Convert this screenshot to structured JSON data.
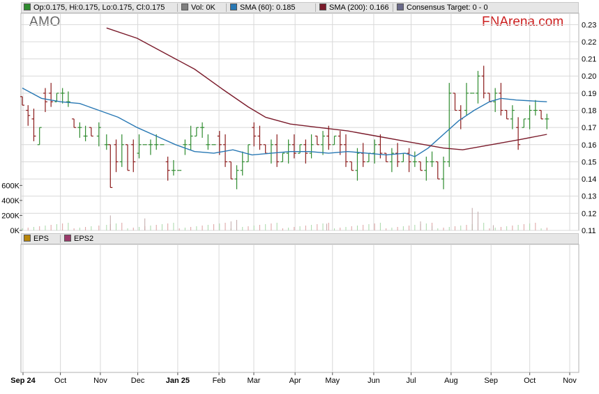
{
  "ticker": "AMO",
  "brand": "FNArena.com",
  "legend_top": [
    {
      "label": "Op:0.175, Hi:0.175, Lo:0.175, Cl:0.175",
      "color": "#2e8b2e"
    },
    {
      "label": "Vol: 0K",
      "color": "#808080"
    },
    {
      "label": "SMA (60): 0.185",
      "color": "#2878b4"
    },
    {
      "label": "SMA (200): 0.166",
      "color": "#7a1a2a"
    },
    {
      "label": "Consensus Target: 0 - 0",
      "color": "#6a6a8a"
    }
  ],
  "legend_bottom": [
    {
      "label": "EPS",
      "color": "#b8860b"
    },
    {
      "label": "EPS2",
      "color": "#9a3a6a"
    }
  ],
  "colors": {
    "up": "#2e8b2e",
    "down": "#8b1a1a",
    "sma60": "#2878b4",
    "sma200": "#7a1a2a",
    "grid": "#d8d8d8"
  },
  "chart_data": {
    "type": "ohlc",
    "price_ylim": [
      0.11,
      0.235
    ],
    "price_ticks": [
      "0.23",
      "0.22",
      "0.21",
      "0.20",
      "0.19",
      "0.18",
      "0.17",
      "0.16",
      "0.15",
      "0.14",
      "0.13",
      "0.12",
      "0.11"
    ],
    "volume_ticks": [
      "600K",
      "400K",
      "200K",
      "0K"
    ],
    "volume_ylim": [
      0,
      650000
    ],
    "x_labels": [
      "Sep 24",
      "Oct",
      "Nov",
      "Dec",
      "Jan 25",
      "Feb",
      "Mar",
      "Apr",
      "May",
      "Jun",
      "Jul",
      "Aug",
      "Sep",
      "Oct",
      "Nov"
    ],
    "x_bold": [
      "Sep 24",
      "Jan 25"
    ],
    "x_range": [
      0,
      287
    ],
    "x_label_days": [
      0,
      29,
      60,
      89,
      120,
      152,
      179,
      211,
      240,
      272,
      301,
      332,
      363,
      393,
      424
    ],
    "x_label_scale_days": 424,
    "ohlc_points": [
      [
        0,
        0.188,
        0.183
      ],
      [
        3,
        0.18,
        0.177
      ],
      [
        6,
        0.175,
        0.165
      ],
      [
        9,
        0.16,
        0.17
      ],
      [
        12,
        0.19,
        0.185
      ],
      [
        15,
        0.19,
        0.185
      ],
      [
        18,
        0.185,
        0.19
      ],
      [
        21,
        0.19,
        0.19
      ],
      [
        24,
        0.185,
        0.185
      ],
      [
        27,
        0.175,
        0.17
      ],
      [
        30,
        0.17,
        0.17
      ],
      [
        33,
        0.165,
        0.165
      ],
      [
        36,
        0.17,
        0.165
      ],
      [
        40,
        0.165,
        0.17
      ],
      [
        44,
        0.16,
        0.16
      ],
      [
        46,
        0.16,
        0.135
      ],
      [
        49,
        0.16,
        0.15
      ],
      [
        52,
        0.15,
        0.16
      ],
      [
        55,
        0.16,
        0.145
      ],
      [
        58,
        0.16,
        0.15
      ],
      [
        61,
        0.155,
        0.16
      ],
      [
        64,
        0.16,
        0.16
      ],
      [
        67,
        0.16,
        0.16
      ],
      [
        70,
        0.16,
        0.16
      ],
      [
        73,
        0.16,
        0.16
      ],
      [
        76,
        0.15,
        0.145
      ],
      [
        79,
        0.145,
        0.145
      ],
      [
        82,
        0.145,
        0.145
      ],
      [
        85,
        0.16,
        0.16
      ],
      [
        88,
        0.16,
        0.165
      ],
      [
        91,
        0.165,
        0.17
      ],
      [
        94,
        0.17,
        0.17
      ],
      [
        97,
        0.16,
        0.16
      ],
      [
        100,
        0.16,
        0.16
      ],
      [
        103,
        0.165,
        0.16
      ],
      [
        106,
        0.16,
        0.15
      ],
      [
        109,
        0.15,
        0.14
      ],
      [
        112,
        0.14,
        0.145
      ],
      [
        115,
        0.145,
        0.15
      ],
      [
        118,
        0.15,
        0.16
      ],
      [
        121,
        0.17,
        0.165
      ],
      [
        124,
        0.165,
        0.16
      ],
      [
        127,
        0.16,
        0.155
      ],
      [
        130,
        0.155,
        0.16
      ],
      [
        133,
        0.16,
        0.15
      ],
      [
        136,
        0.15,
        0.155
      ],
      [
        139,
        0.155,
        0.16
      ],
      [
        142,
        0.16,
        0.155
      ],
      [
        145,
        0.155,
        0.16
      ],
      [
        148,
        0.16,
        0.155
      ],
      [
        151,
        0.155,
        0.16
      ],
      [
        154,
        0.165,
        0.16
      ],
      [
        157,
        0.16,
        0.165
      ],
      [
        160,
        0.165,
        0.16
      ],
      [
        163,
        0.16,
        0.165
      ],
      [
        166,
        0.165,
        0.16
      ],
      [
        169,
        0.16,
        0.15
      ],
      [
        172,
        0.15,
        0.145
      ],
      [
        175,
        0.145,
        0.155
      ],
      [
        178,
        0.155,
        0.15
      ],
      [
        181,
        0.15,
        0.155
      ],
      [
        184,
        0.155,
        0.16
      ],
      [
        187,
        0.16,
        0.155
      ],
      [
        190,
        0.155,
        0.15
      ],
      [
        193,
        0.15,
        0.155
      ],
      [
        196,
        0.155,
        0.15
      ],
      [
        199,
        0.15,
        0.155
      ],
      [
        202,
        0.155,
        0.15
      ],
      [
        205,
        0.15,
        0.15
      ],
      [
        208,
        0.15,
        0.145
      ],
      [
        211,
        0.145,
        0.15
      ],
      [
        214,
        0.15,
        0.15
      ],
      [
        217,
        0.15,
        0.14
      ],
      [
        220,
        0.14,
        0.15
      ],
      [
        223,
        0.15,
        0.19
      ],
      [
        226,
        0.19,
        0.18
      ],
      [
        229,
        0.18,
        0.175
      ],
      [
        232,
        0.18,
        0.19
      ],
      [
        235,
        0.19,
        0.19
      ],
      [
        238,
        0.19,
        0.2
      ],
      [
        241,
        0.2,
        0.19
      ],
      [
        244,
        0.19,
        0.185
      ],
      [
        247,
        0.185,
        0.19
      ],
      [
        250,
        0.19,
        0.18
      ],
      [
        253,
        0.18,
        0.175
      ],
      [
        256,
        0.175,
        0.18
      ],
      [
        259,
        0.17,
        0.16
      ],
      [
        262,
        0.17,
        0.175
      ],
      [
        265,
        0.175,
        0.18
      ],
      [
        268,
        0.18,
        0.18
      ],
      [
        271,
        0.18,
        0.175
      ],
      [
        274,
        0.175,
        0.175
      ]
    ],
    "sma60": [
      [
        0,
        0.193
      ],
      [
        10,
        0.187
      ],
      [
        20,
        0.185
      ],
      [
        30,
        0.184
      ],
      [
        40,
        0.18
      ],
      [
        50,
        0.176
      ],
      [
        60,
        0.17
      ],
      [
        70,
        0.165
      ],
      [
        80,
        0.16
      ],
      [
        90,
        0.156
      ],
      [
        100,
        0.155
      ],
      [
        110,
        0.157
      ],
      [
        120,
        0.154
      ],
      [
        130,
        0.155
      ],
      [
        140,
        0.156
      ],
      [
        150,
        0.156
      ],
      [
        160,
        0.155
      ],
      [
        170,
        0.156
      ],
      [
        180,
        0.155
      ],
      [
        190,
        0.154
      ],
      [
        200,
        0.155
      ],
      [
        205,
        0.153
      ],
      [
        212,
        0.158
      ],
      [
        220,
        0.166
      ],
      [
        228,
        0.174
      ],
      [
        236,
        0.18
      ],
      [
        244,
        0.185
      ],
      [
        250,
        0.187
      ],
      [
        258,
        0.186
      ],
      [
        274,
        0.185
      ]
    ],
    "sma200": [
      [
        44,
        0.228
      ],
      [
        60,
        0.222
      ],
      [
        75,
        0.213
      ],
      [
        90,
        0.204
      ],
      [
        105,
        0.192
      ],
      [
        118,
        0.182
      ],
      [
        127,
        0.176
      ],
      [
        140,
        0.172
      ],
      [
        155,
        0.17
      ],
      [
        170,
        0.168
      ],
      [
        185,
        0.165
      ],
      [
        200,
        0.162
      ],
      [
        210,
        0.16
      ],
      [
        220,
        0.158
      ],
      [
        230,
        0.157
      ],
      [
        245,
        0.16
      ],
      [
        260,
        0.163
      ],
      [
        274,
        0.166
      ]
    ],
    "volume_spikes": [
      [
        46,
        200000
      ],
      [
        64,
        160000
      ],
      [
        109,
        120000
      ],
      [
        112,
        140000
      ],
      [
        159,
        90000
      ],
      [
        208,
        120000
      ],
      [
        214,
        60000
      ],
      [
        235,
        300000
      ],
      [
        238,
        250000
      ],
      [
        246,
        70000
      ]
    ]
  }
}
